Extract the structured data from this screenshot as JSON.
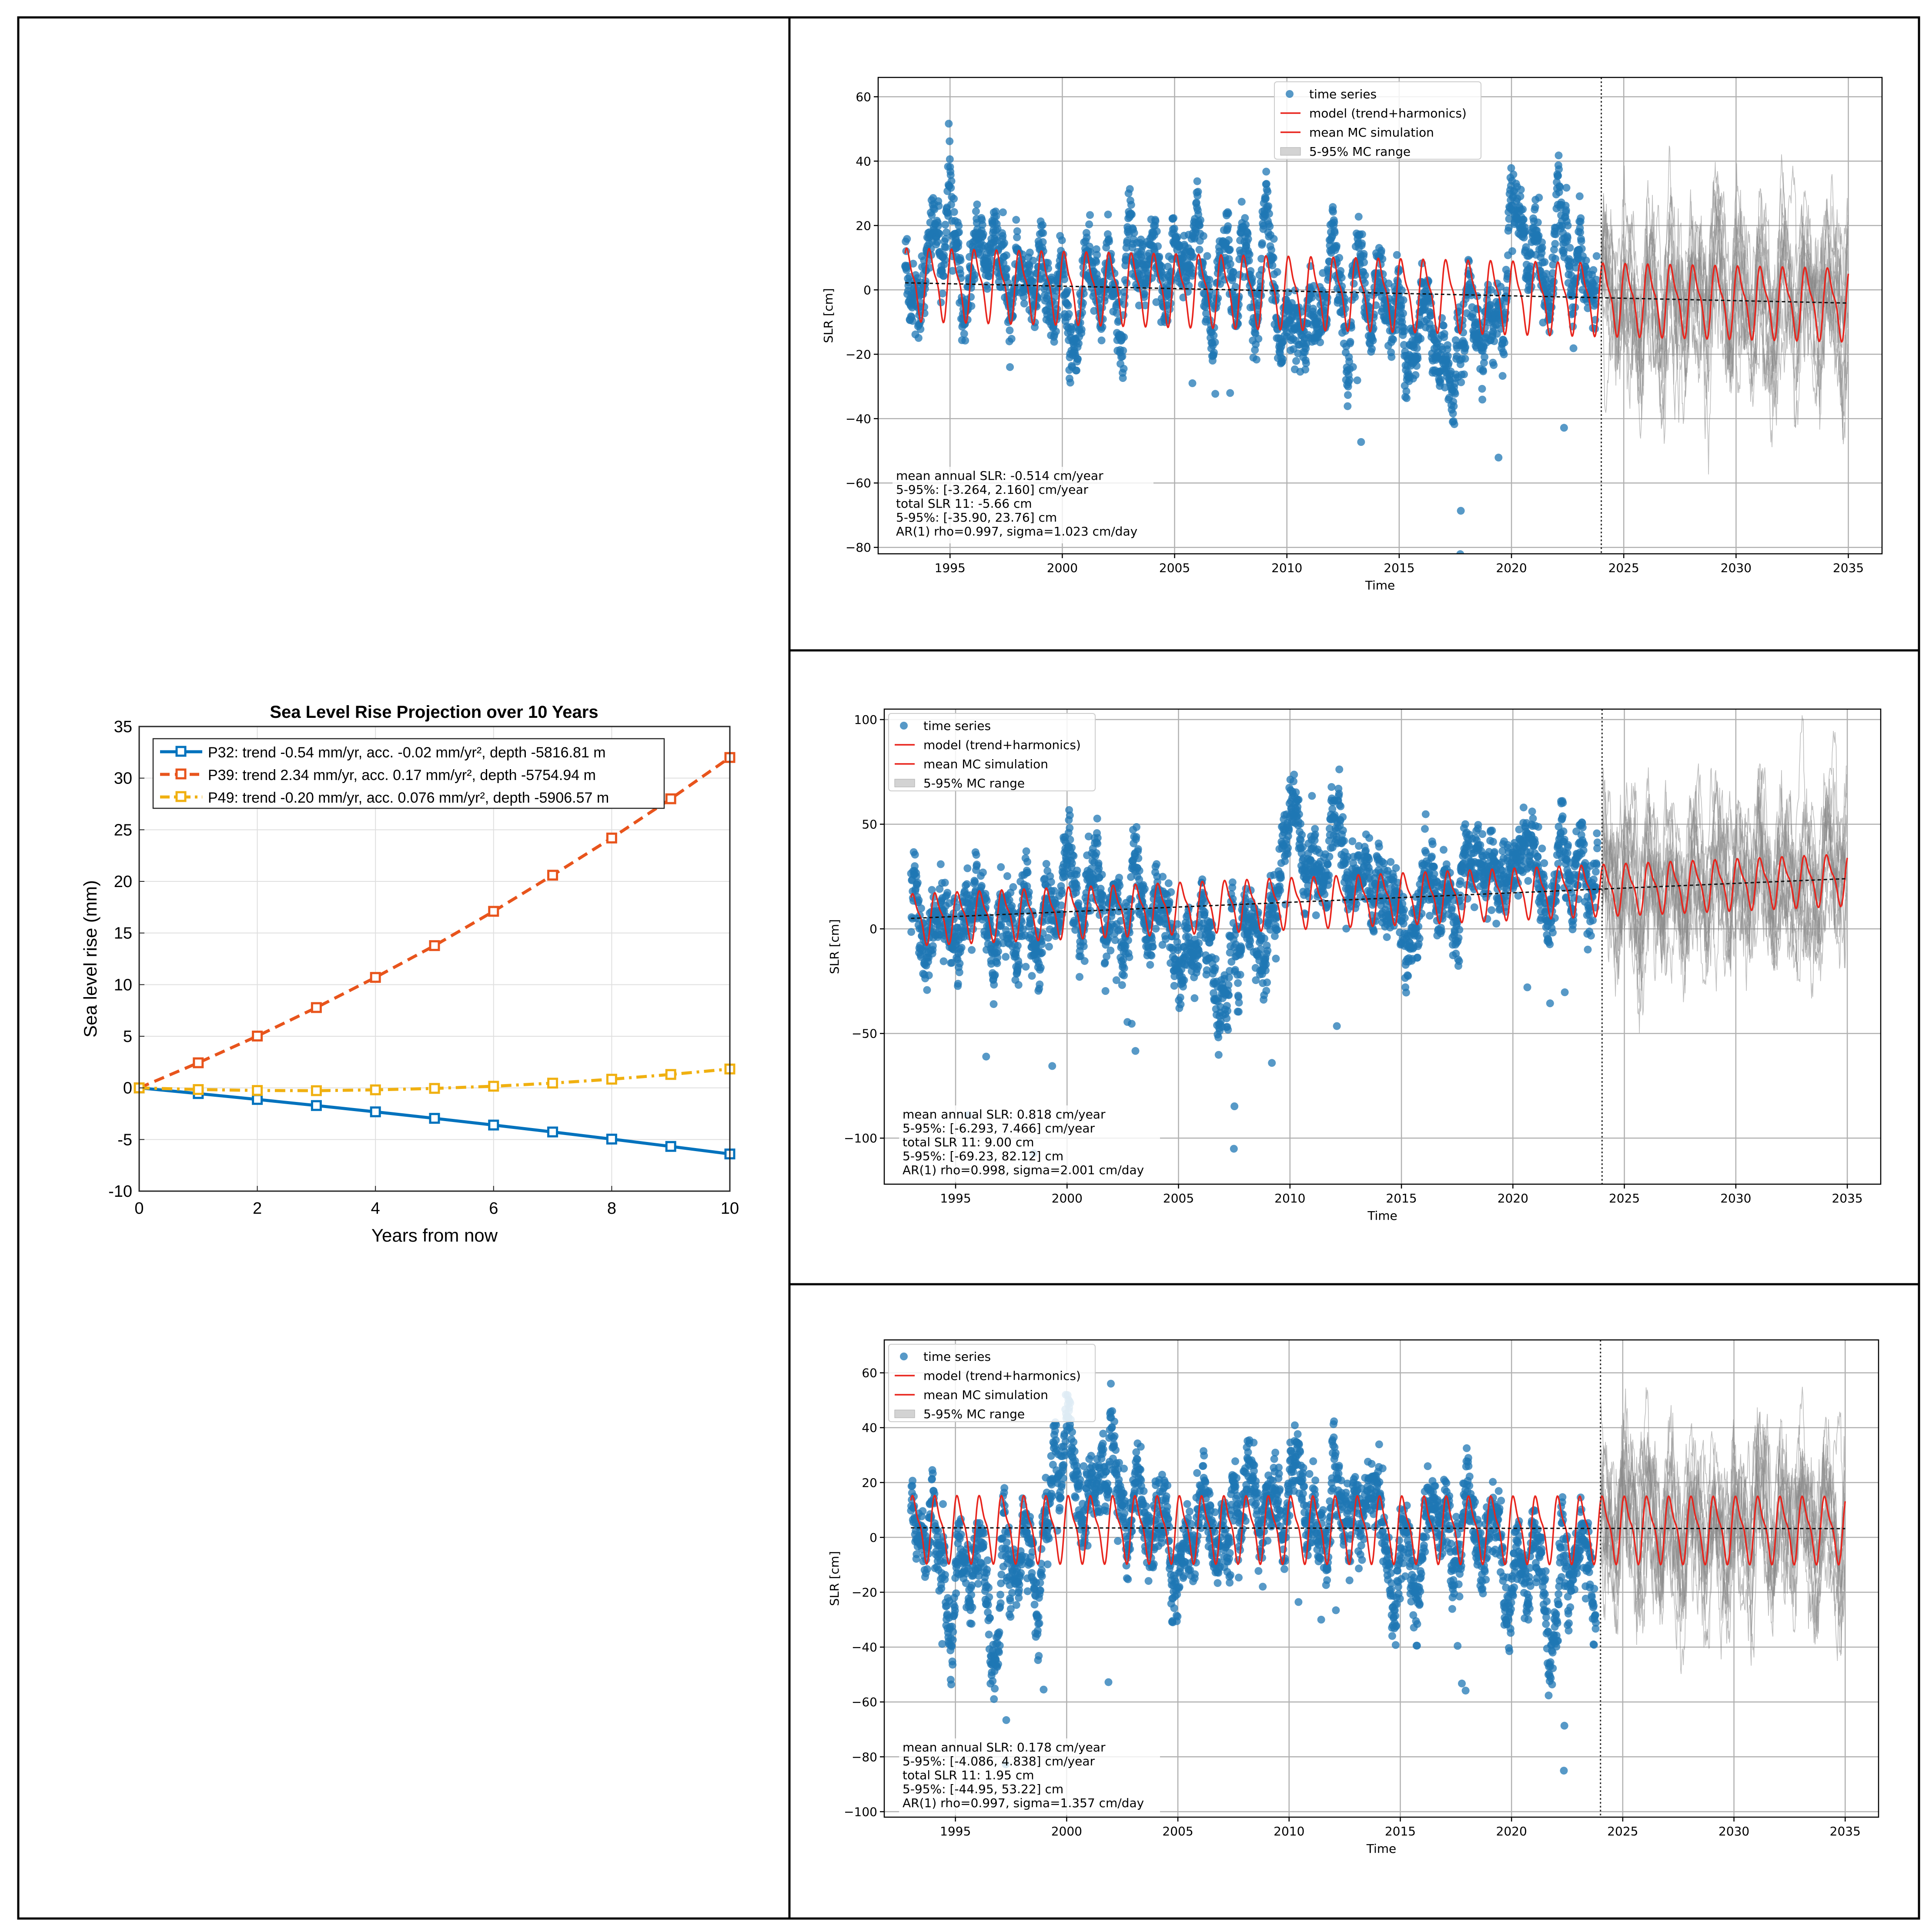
{
  "chart_data": [
    {
      "id": "projection",
      "type": "line",
      "title": "Sea Level Rise Projection over 10 Years",
      "xlabel": "Years from now",
      "ylabel": "Sea level rise (mm)",
      "xlim": [
        0,
        10
      ],
      "ylim": [
        -10,
        35
      ],
      "xticks": [
        0,
        2,
        4,
        6,
        8,
        10
      ],
      "yticks": [
        -10,
        -5,
        0,
        5,
        10,
        15,
        20,
        25,
        30,
        35
      ],
      "grid": true,
      "legend": "top-left",
      "x": [
        0,
        1,
        2,
        3,
        4,
        5,
        6,
        7,
        8,
        9,
        10
      ],
      "series": [
        {
          "name": "P32: trend -0.54 mm/yr, acc. -0.02 mm/yr², depth -5816.81 m",
          "color": "#0072bd",
          "dash": "solid",
          "values": [
            0,
            -0.55,
            -1.12,
            -1.71,
            -2.32,
            -2.95,
            -3.6,
            -4.27,
            -4.96,
            -5.67,
            -6.4
          ]
        },
        {
          "name": "P39: trend 2.34 mm/yr, acc. 0.17 mm/yr², depth -5754.94 m",
          "color": "#e8541c",
          "dash": "dashed",
          "values": [
            0,
            2.43,
            5.02,
            7.78,
            10.7,
            13.78,
            17.1,
            20.6,
            24.2,
            28.0,
            32.0
          ]
        },
        {
          "name": "P49: trend -0.20 mm/yr, acc. 0.076 mm/yr², depth -5906.57 m",
          "color": "#f0b010",
          "dash": "dashdot",
          "values": [
            0,
            -0.16,
            -0.25,
            -0.27,
            -0.19,
            -0.05,
            0.16,
            0.46,
            0.84,
            1.3,
            1.83
          ]
        }
      ]
    },
    {
      "id": "P32",
      "type": "scatter",
      "xlabel": "Time",
      "ylabel": "SLR [cm]",
      "xlim": [
        1991.8,
        2036.5
      ],
      "ylim": [
        -82,
        66
      ],
      "xticks": [
        1995,
        2000,
        2005,
        2010,
        2015,
        2020,
        2025,
        2030,
        2035
      ],
      "yticks": [
        -80,
        -60,
        -40,
        -20,
        0,
        20,
        40,
        60
      ],
      "legend": "top-center",
      "legend_entries": [
        "time series",
        "model (trend+harmonics)",
        "mean MC simulation",
        "5-95% MC range"
      ],
      "obs_range": [
        1993,
        2023.8
      ],
      "forecast_start": 2024,
      "forecast_end": 2035,
      "trend_start": 2.2,
      "trend_end": -4.1,
      "harmonic_amplitude": 11,
      "obs_spread": 17,
      "mc_spread": 30,
      "stats": [
        "mean annual SLR: -0.514 cm/year",
        "5-95%: [-3.264, 2.160] cm/year",
        "total SLR 11: -5.66 cm",
        "5-95%: [-35.90, 23.76] cm",
        "AR(1) rho=0.997, sigma=1.023 cm/day"
      ]
    },
    {
      "id": "P39",
      "type": "scatter",
      "xlabel": "Time",
      "ylabel": "SLR [cm]",
      "xlim": [
        1991.8,
        2036.5
      ],
      "ylim": [
        -122,
        105
      ],
      "xticks": [
        1995,
        2000,
        2005,
        2010,
        2015,
        2020,
        2025,
        2030,
        2035
      ],
      "yticks": [
        -100,
        -50,
        0,
        50,
        100
      ],
      "legend": "top-left",
      "legend_entries": [
        "time series",
        "model (trend+harmonics)",
        "mean MC simulation",
        "5-95% MC range"
      ],
      "obs_range": [
        1993,
        2023.8
      ],
      "forecast_start": 2024,
      "forecast_end": 2035,
      "trend_start": 5,
      "trend_end": 24,
      "harmonic_amplitude": 12,
      "obs_spread": 28,
      "mc_spread": 45,
      "stats": [
        "mean annual SLR: 0.818 cm/year",
        "5-95%: [-6.293, 7.466] cm/year",
        "total SLR 11: 9.00 cm",
        "5-95%: [-69.23, 82.12] cm",
        "AR(1) rho=0.998, sigma=2.001 cm/day"
      ]
    },
    {
      "id": "P49",
      "type": "scatter",
      "xlabel": "Time",
      "ylabel": "SLR [cm]",
      "xlim": [
        1991.8,
        2036.5
      ],
      "ylim": [
        -102,
        72
      ],
      "xticks": [
        1995,
        2000,
        2005,
        2010,
        2015,
        2020,
        2025,
        2030,
        2035
      ],
      "yticks": [
        -100,
        -80,
        -60,
        -40,
        -20,
        0,
        20,
        40,
        60
      ],
      "legend": "top-left",
      "legend_entries": [
        "time series",
        "model (trend+harmonics)",
        "mean MC simulation",
        "5-95% MC range"
      ],
      "obs_range": [
        1993,
        2023.8
      ],
      "forecast_start": 2024,
      "forecast_end": 2035,
      "trend_start": 3.5,
      "trend_end": 3.2,
      "harmonic_amplitude": 12,
      "obs_spread": 22,
      "mc_spread": 35,
      "stats": [
        "mean annual SLR: 0.178 cm/year",
        "5-95%: [-4.086, 4.838] cm/year",
        "total SLR 11: 1.95 cm",
        "5-95%: [-44.95, 53.22] cm",
        "AR(1) rho=0.997, sigma=1.357 cm/day"
      ]
    }
  ]
}
